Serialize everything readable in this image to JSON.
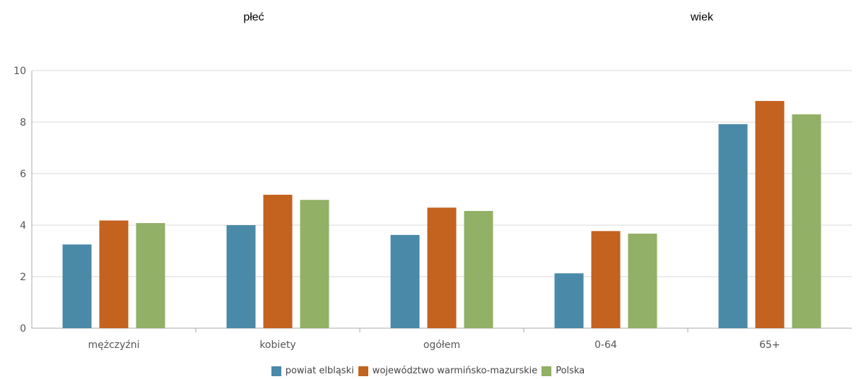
{
  "groups": {
    "left_label": "płeć",
    "right_label": "wiek"
  },
  "colors": {
    "powiat": "#4a8aa8",
    "wojewodztwo": "#c4621f",
    "polska": "#92b066",
    "grid": "#d8d8d8",
    "axis": "#aaaaaa"
  },
  "chart_data": {
    "type": "bar",
    "categories": [
      "mężczyźni",
      "kobiety",
      "ogółem",
      "0-64",
      "65+"
    ],
    "series": [
      {
        "name": "powiat elbląski",
        "values": [
          3.25,
          4.0,
          3.62,
          2.13,
          7.92
        ]
      },
      {
        "name": "województwo warmińsko-mazurskie",
        "values": [
          4.18,
          5.18,
          4.68,
          3.77,
          8.82
        ]
      },
      {
        "name": "Polska",
        "values": [
          4.08,
          4.98,
          4.55,
          3.67,
          8.3
        ]
      }
    ],
    "yticks": [
      "0",
      "2",
      "4",
      "6",
      "8",
      "10"
    ],
    "ylim": [
      0,
      10
    ],
    "grid": true,
    "legend_position": "bottom"
  }
}
